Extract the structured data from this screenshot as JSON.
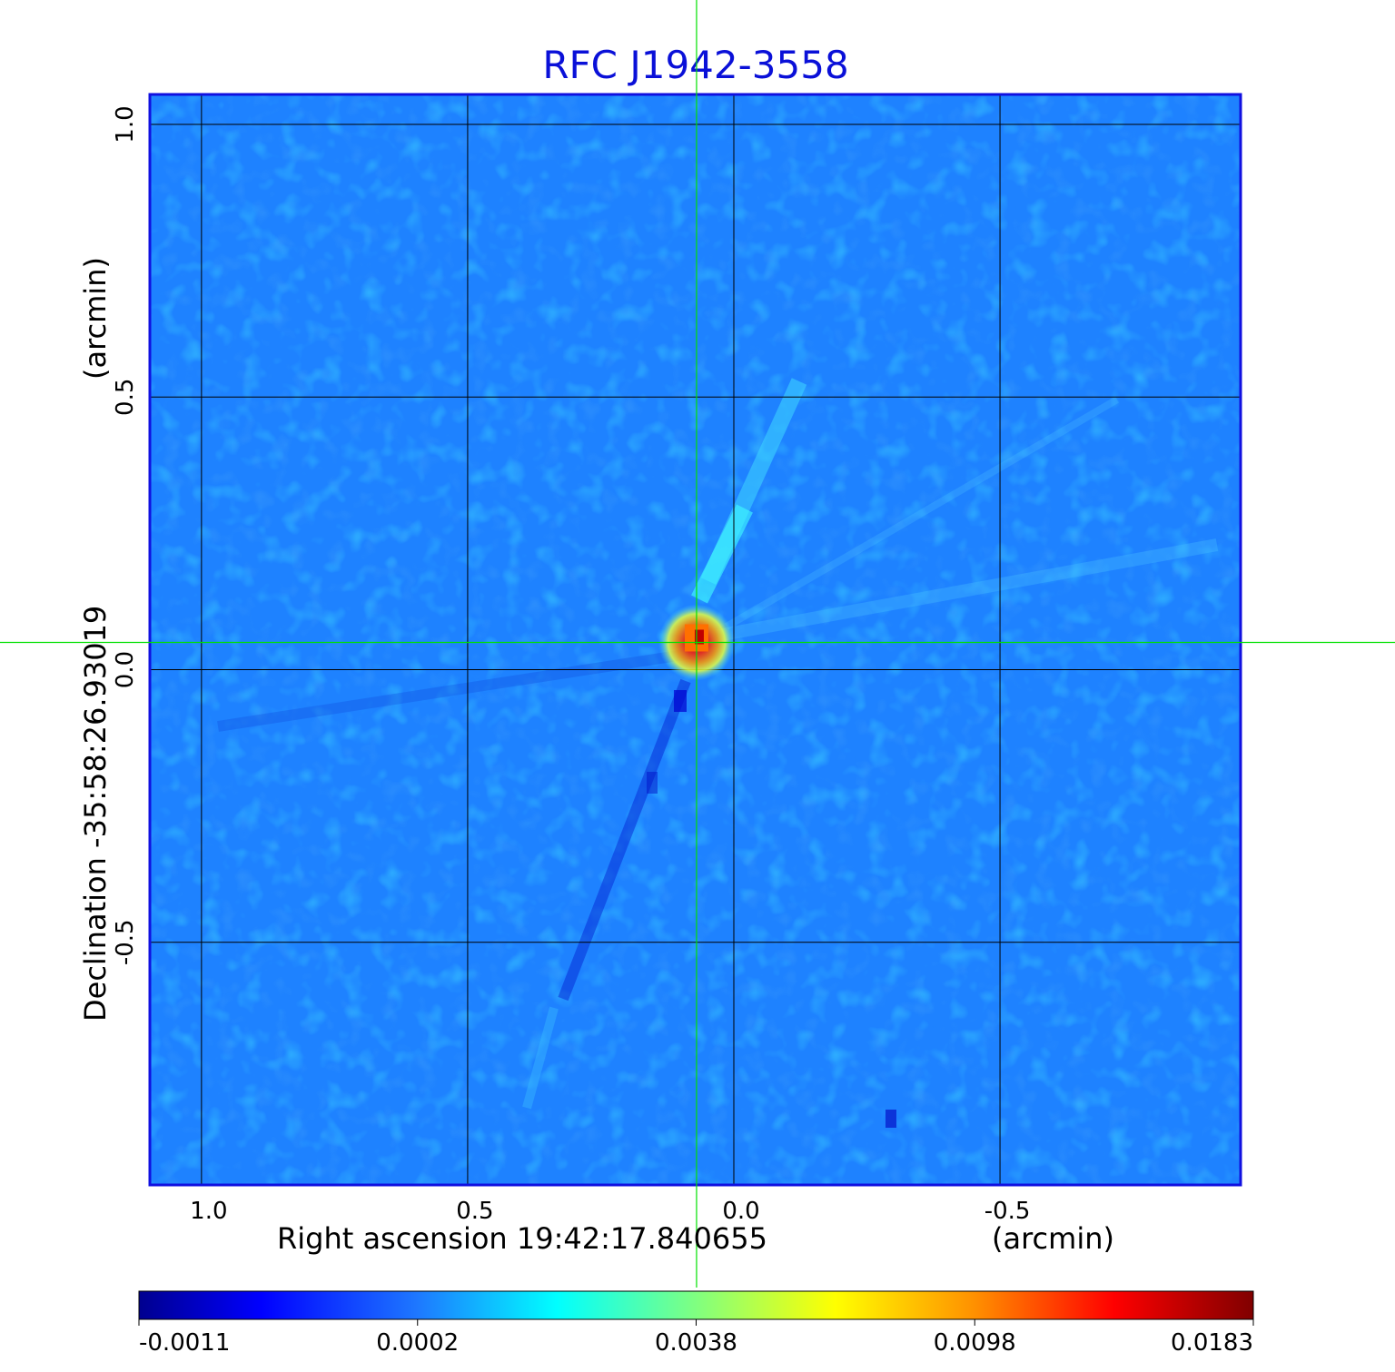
{
  "chart_data": {
    "type": "heatmap",
    "title": "RFC J1942-3558",
    "xlabel": "Right ascension  19:42:17.840655",
    "xunit": "(arcmin)",
    "ylabel": "Declination  -35:58:26.93019",
    "yunit": "(arcmin)",
    "x_ticks": [
      "1.0",
      "0.5",
      "0.0",
      "-0.5"
    ],
    "y_ticks": [
      "1.0",
      "0.5",
      "0.0",
      "-0.5"
    ],
    "x_tick_values": [
      1.0,
      0.5,
      0.0,
      -0.5
    ],
    "y_tick_values": [
      1.0,
      0.5,
      0.0,
      -0.5
    ],
    "xlim": [
      1.097,
      -0.952
    ],
    "ylim": [
      -0.945,
      1.055
    ],
    "grid": true,
    "crosshair": {
      "x": 0.07,
      "y": 0.05,
      "color": "#00e000"
    },
    "colorbar": {
      "colormap": "jet",
      "tick_labels": [
        "-0.0011",
        "0.0002",
        "0.0038",
        "0.0098",
        "0.0183"
      ],
      "values": [
        -0.0011,
        0.0002,
        0.0038,
        0.0098,
        0.0183
      ],
      "placement": "bottom"
    },
    "background_color": "#1e82ff",
    "frame_color": "#1010e0",
    "peak": {
      "x": 0.07,
      "y": 0.05,
      "value": 0.0183
    }
  }
}
